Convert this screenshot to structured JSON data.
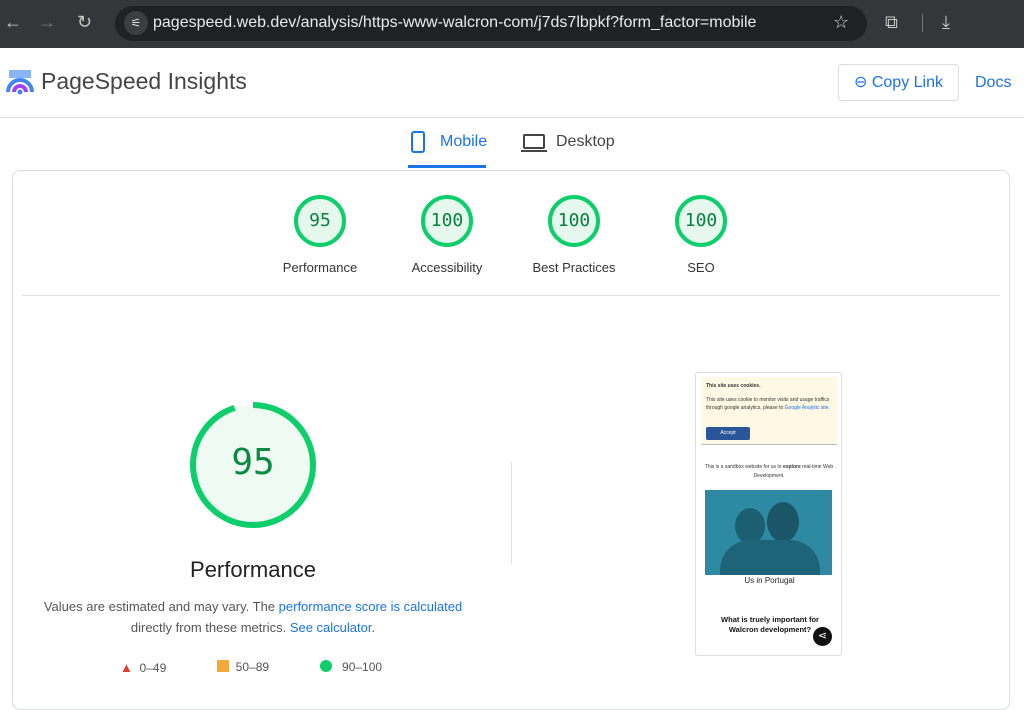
{
  "browser": {
    "url": "pagespeed.web.dev/analysis/https-www-walcron-com/j7ds7lbpkf?form_factor=mobile"
  },
  "header": {
    "title": "PageSpeed Insights",
    "copy_link": "Copy Link",
    "docs": "Docs"
  },
  "tabs": [
    {
      "label": "Mobile",
      "active": true
    },
    {
      "label": "Desktop",
      "active": false
    }
  ],
  "scores": [
    {
      "label": "Performance",
      "value": "95"
    },
    {
      "label": "Accessibility",
      "value": "100"
    },
    {
      "label": "Best Practices",
      "value": "100"
    },
    {
      "label": "SEO",
      "value": "100"
    }
  ],
  "main": {
    "score": "95",
    "score_fraction": 0.95,
    "label": "Performance",
    "desc1": "Values are estimated and may vary. The ",
    "desc_link1": "performance score is calculated",
    "desc2": "directly from these metrics. ",
    "desc_link2": "See calculator",
    "desc3": "."
  },
  "legend": [
    {
      "range": "0–49",
      "color": "#ff4e42"
    },
    {
      "range": "50–89",
      "color": "#ffa400"
    },
    {
      "range": "90–100",
      "color": "#0cce6b"
    }
  ],
  "screenshot": {
    "cookie_title": "This site uses cookies.",
    "cookie_text": "This site uses cookie to monitor visits and usage traffics through google analytics, please to ",
    "cookie_link": "Google Analytic site.",
    "accept": "Accept",
    "intro1": "This is a sandbox website for us to ",
    "intro_bold": "explore",
    "intro2": " real-time Web Development.",
    "caption": "Us in Portugal",
    "heading": "What is truely important for Walcron development?"
  },
  "colors": {
    "pass": "#0cce6b",
    "link": "#1a73e8"
  }
}
